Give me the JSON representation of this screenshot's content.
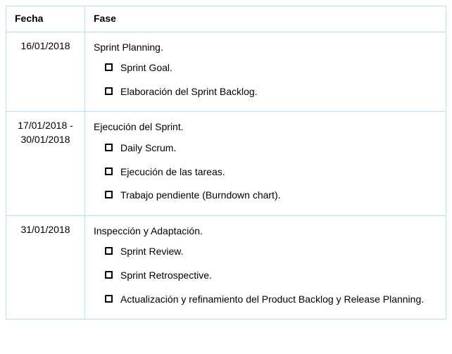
{
  "table": {
    "border_color": "#b8e0f0",
    "columns": {
      "fecha": "Fecha",
      "fase": "Fase"
    },
    "rows": [
      {
        "fecha_lines": [
          "16/01/2018"
        ],
        "phase_title": "Sprint Planning.",
        "items": [
          "Sprint Goal.",
          "Elaboración del Sprint Backlog."
        ]
      },
      {
        "fecha_lines": [
          "17/01/2018 -",
          "30/01/2018"
        ],
        "phase_title": "Ejecución del Sprint.",
        "items": [
          "Daily Scrum.",
          "Ejecución de las tareas.",
          "Trabajo pendiente (Burndown chart)."
        ]
      },
      {
        "fecha_lines": [
          "31/01/2018"
        ],
        "phase_title": "Inspección y Adaptación.",
        "items": [
          "Sprint Review.",
          "Sprint Retrospective.",
          "Actualización y refinamiento del Product Backlog y Release Planning."
        ]
      }
    ]
  }
}
